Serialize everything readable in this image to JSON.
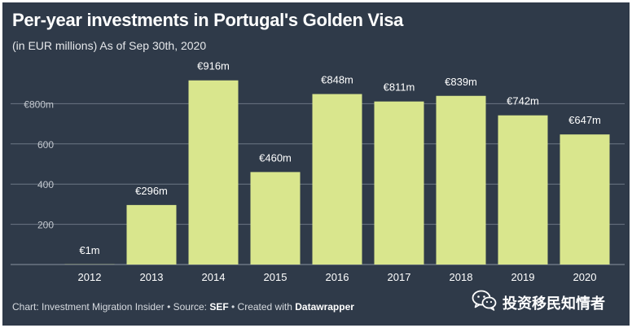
{
  "title": "Per-year investments in Portugal's Golden Visa",
  "subtitle": "(in EUR millions) As of Sep 30th, 2020",
  "footer": {
    "prefix": "Chart: Investment Migration Insider • Source: ",
    "source": "SEF",
    "middle": " • Created with ",
    "tool": "Datawrapper"
  },
  "watermark": {
    "text": "投资移民知情者",
    "icon": "wechat-icon"
  },
  "colors": {
    "background": "#2f3a49",
    "bar": "#d9e68d",
    "gridline": "#6c7684",
    "text": "#ffffff"
  },
  "chart_data": {
    "type": "bar",
    "categories": [
      "2012",
      "2013",
      "2014",
      "2015",
      "2016",
      "2017",
      "2018",
      "2019",
      "2020"
    ],
    "values": [
      1,
      296,
      916,
      460,
      848,
      811,
      839,
      742,
      647
    ],
    "data_labels": [
      "€1m",
      "€296m",
      "€916m",
      "€460m",
      "€848m",
      "€811m",
      "€839m",
      "€742m",
      "€647m"
    ],
    "y_ticks": [
      200,
      400,
      600,
      800
    ],
    "y_tick_labels": [
      "200",
      "400",
      "600",
      "€800m"
    ],
    "ylim": [
      0,
      1000
    ],
    "grid": true,
    "title": "Per-year investments in Portugal's Golden Visa",
    "xlabel": "",
    "ylabel": ""
  }
}
